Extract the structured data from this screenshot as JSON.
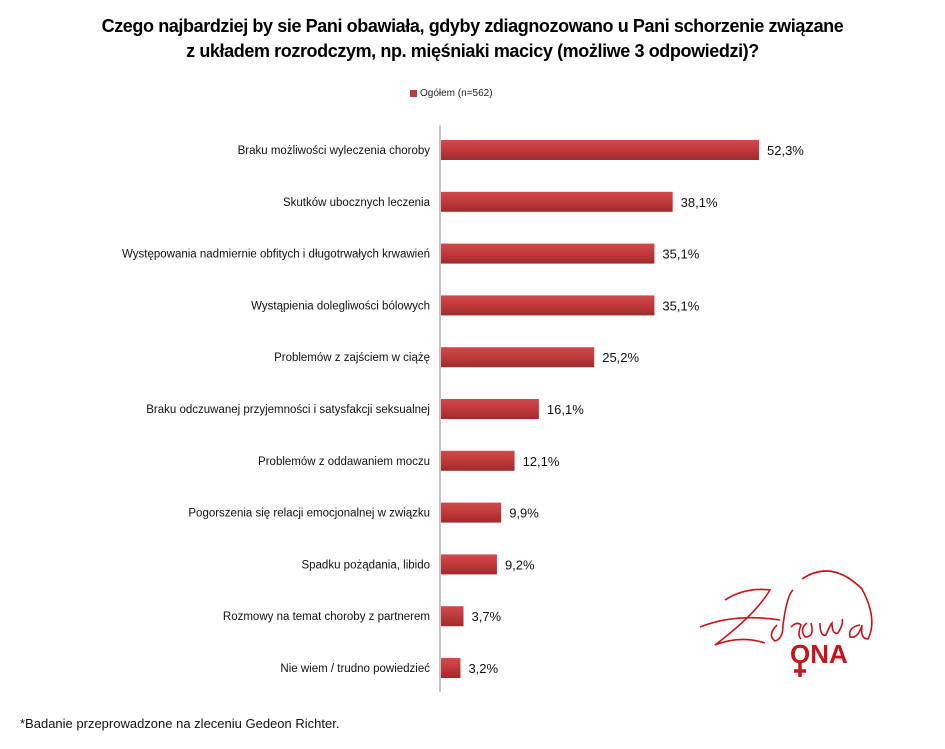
{
  "title_line1": "Czego najbardziej by sie Pani obawiała, gdyby zdiagnozowano u Pani schorzenie związane",
  "title_line2": "z układem rozrodczym, np. mięśniaki macicy (możliwe 3 odpowiedzi)?",
  "footnote": "*Badanie przeprowadzone na zleceniu Gedeon Richter.",
  "logo": {
    "text": "Zdrowa ONA",
    "color": "#c0161c"
  },
  "chart_data": {
    "type": "bar",
    "orientation": "horizontal",
    "title": "Czego najbardziej by sie Pani obawiała, gdyby zdiagnozowano u Pani schorzenie związane z układem rozrodczym, np. mięśniaki macicy (możliwe 3 odpowiedzi)?",
    "legend": {
      "position": "top",
      "entries": [
        "Ogółem (n=562)"
      ]
    },
    "grid": false,
    "xlim": [
      0,
      55
    ],
    "unit": "%",
    "color": "#c0393b",
    "categories": [
      "Braku możliwości wyleczenia choroby",
      "Skutków ubocznych leczenia",
      "Występowania nadmiernie obfitych i długotrwałych krwawień",
      "Wystąpienia dolegliwości bólowych",
      "Problemów z zajściem w ciążę",
      "Braku odczuwanej przyjemności i satysfakcji seksualnej",
      "Problemów z oddawaniem moczu",
      "Pogorszenia się relacji emocjonalnej w związku",
      "Spadku pożądania, libido",
      "Rozmowy na temat choroby z partnerem",
      "Nie wiem / trudno powiedzieć"
    ],
    "series": [
      {
        "name": "Ogółem (n=562)",
        "values": [
          52.3,
          38.1,
          35.1,
          35.1,
          25.2,
          16.1,
          12.1,
          9.9,
          9.2,
          3.7,
          3.2
        ],
        "labels": [
          "52,3%",
          "38,1%",
          "35,1%",
          "35,1%",
          "25,2%",
          "16,1%",
          "12,1%",
          "9,9%",
          "9,2%",
          "3,7%",
          "3,2%"
        ]
      }
    ]
  }
}
